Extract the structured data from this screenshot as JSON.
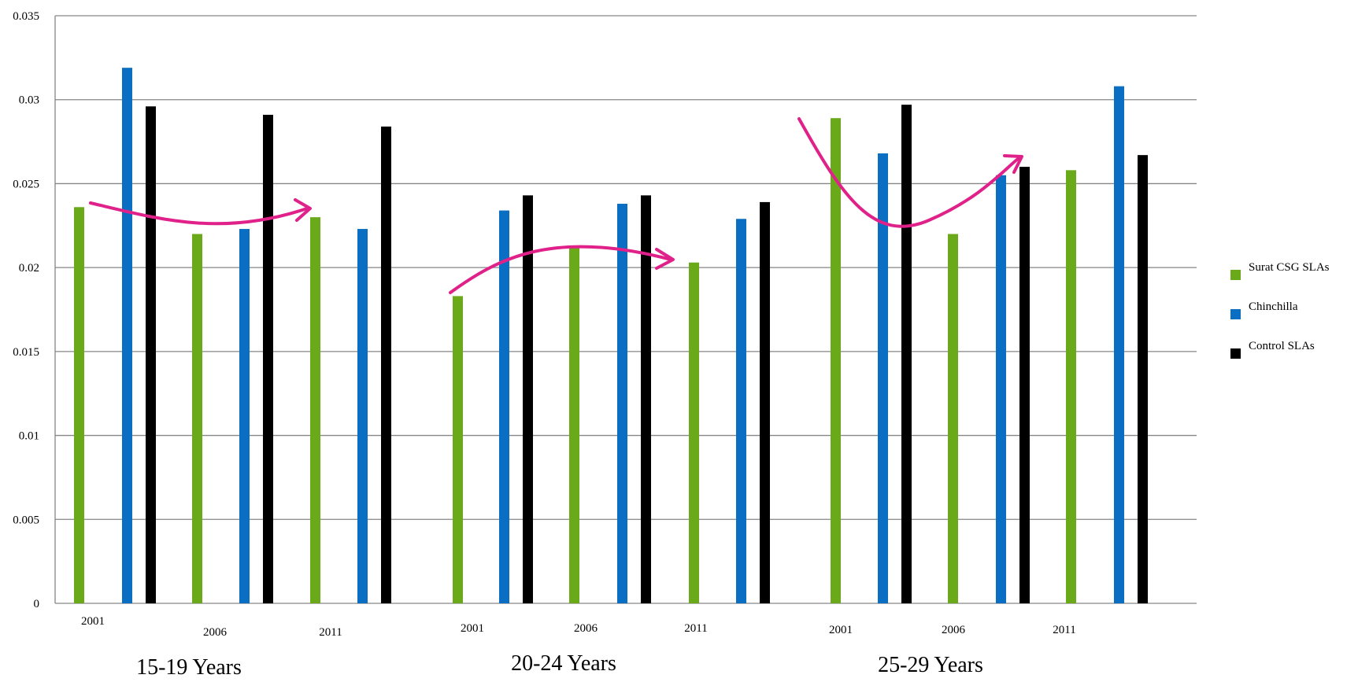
{
  "chart_data": {
    "type": "bar",
    "ylim": [
      0,
      0.035
    ],
    "y_ticks": [
      "0",
      "0.005",
      "0.01",
      "0.015",
      "0.02",
      "0.025",
      "0.03",
      "0.035"
    ],
    "grid": "horizontal",
    "legend_position": "right",
    "series": [
      {
        "name": "Surat CSG SLAs",
        "color": "#6aaa1a"
      },
      {
        "name": "Chinchilla",
        "color": "#0a6fc2"
      },
      {
        "name": "Control SLAs",
        "color": "#000000"
      }
    ],
    "groups": [
      {
        "label": "15-19 Years",
        "years": [
          "2001",
          "2006",
          "2011"
        ],
        "values": [
          [
            0.0236,
            0.0319,
            0.0296
          ],
          [
            0.022,
            0.0223,
            0.0291
          ],
          [
            0.023,
            0.0223,
            0.0284
          ]
        ]
      },
      {
        "label": "20-24 Years",
        "years": [
          "2001",
          "2006",
          "2011"
        ],
        "values": [
          [
            0.0183,
            0.0234,
            0.0243
          ],
          [
            0.0213,
            0.0238,
            0.0243
          ],
          [
            0.0203,
            0.0229,
            0.0239
          ]
        ]
      },
      {
        "label": "25-29 Years",
        "years": [
          "2001",
          "2006",
          "2011"
        ],
        "values": [
          [
            0.0289,
            0.0268,
            0.0297
          ],
          [
            0.022,
            0.0255,
            0.026
          ],
          [
            0.0258,
            0.0308,
            0.0267
          ]
        ]
      }
    ],
    "trend_arrows": [
      {
        "group": "15-19 Years",
        "color": "#e0218a"
      },
      {
        "group": "20-24 Years",
        "color": "#e0218a"
      },
      {
        "group": "25-29 Years",
        "color": "#e0218a"
      }
    ]
  }
}
